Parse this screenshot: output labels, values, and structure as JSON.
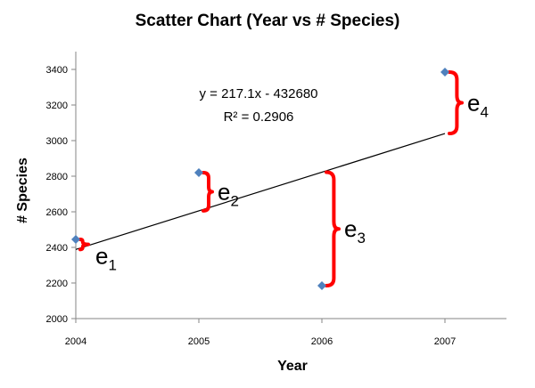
{
  "chart_data": {
    "type": "scatter",
    "title": "Scatter Chart (Year vs # Species)",
    "xlabel": "Year",
    "ylabel": "# Species",
    "xlim": [
      2004,
      2007.5
    ],
    "ylim": [
      2000,
      3500
    ],
    "x_ticks": [
      "2004",
      "2005",
      "2006",
      "2007"
    ],
    "y_ticks": [
      "2000",
      "2200",
      "2400",
      "2600",
      "2800",
      "3000",
      "3200",
      "3400"
    ],
    "points": [
      {
        "x": 2004,
        "y": 2445
      },
      {
        "x": 2005,
        "y": 2820
      },
      {
        "x": 2006,
        "y": 2185
      },
      {
        "x": 2007,
        "y": 3385
      }
    ],
    "trendline": {
      "slope": 217.1,
      "intercept": -432680,
      "x_range": [
        2004,
        2007
      ]
    },
    "equation": "y = 217.1x - 432680",
    "r_squared": "R² = 0.2906",
    "residual_labels": [
      {
        "letter": "e",
        "sub": "1"
      },
      {
        "letter": "e",
        "sub": "2"
      },
      {
        "letter": "e",
        "sub": "3"
      },
      {
        "letter": "e",
        "sub": "4"
      }
    ],
    "colors": {
      "points": "#4f81bd",
      "trendline": "#000000",
      "braces": "#ff0000",
      "axes": "#868686"
    }
  }
}
